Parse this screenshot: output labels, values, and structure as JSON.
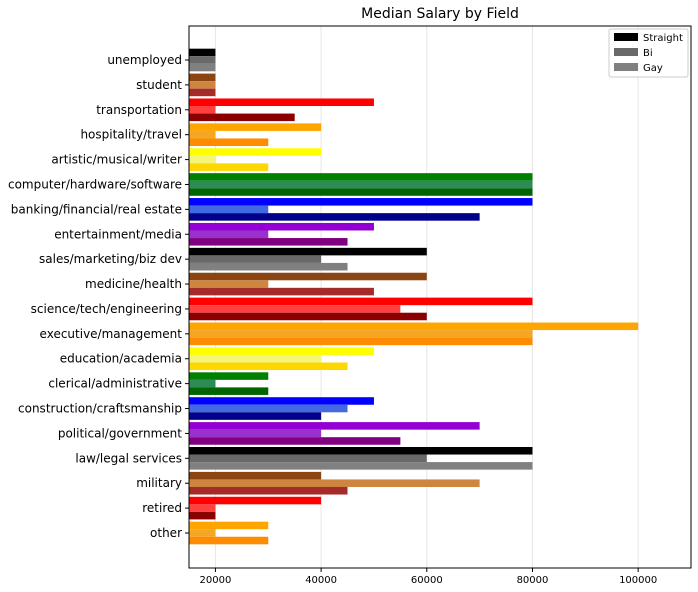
{
  "chart_data": {
    "type": "bar",
    "orientation": "horizontal",
    "title": "Median Salary by Field",
    "xlabel": "",
    "ylabel": "",
    "xlim": [
      15000,
      110000
    ],
    "xticks": [
      20000,
      40000,
      60000,
      80000,
      100000
    ],
    "grid": "vertical",
    "legend_position": "top-right",
    "categories": [
      "unemployed",
      "student",
      "transportation",
      "hospitality/travel",
      "artistic/musical/writer",
      "computer/hardware/software",
      "banking/financial/real estate",
      "entertainment/media",
      "sales/marketing/biz dev",
      "medicine/health",
      "science/tech/engineering",
      "executive/management",
      "education/academia",
      "clerical/administrative",
      "construction/craftsmanship",
      "political/government",
      "law/legal services",
      "military",
      "retired",
      "other"
    ],
    "series": [
      {
        "name": "Straight",
        "legend_color": "#000000",
        "values": [
          20000,
          20000,
          50000,
          40000,
          40000,
          80000,
          80000,
          50000,
          60000,
          60000,
          80000,
          100000,
          50000,
          30000,
          50000,
          70000,
          80000,
          40000,
          40000,
          30000
        ]
      },
      {
        "name": "Bi",
        "legend_color": "#696969",
        "values": [
          20000,
          20000,
          20000,
          20000,
          20000,
          80000,
          30000,
          30000,
          40000,
          30000,
          55000,
          80000,
          40000,
          20000,
          45000,
          40000,
          60000,
          70000,
          20000,
          20000
        ]
      },
      {
        "name": "Gay",
        "legend_color": "#808080",
        "values": [
          20000,
          20000,
          35000,
          30000,
          30000,
          80000,
          70000,
          45000,
          45000,
          50000,
          60000,
          80000,
          45000,
          30000,
          40000,
          55000,
          80000,
          45000,
          20000,
          30000
        ]
      }
    ],
    "bar_colors": [
      [
        "#000000",
        "#696969",
        "#808080"
      ],
      [
        "#8b4513",
        "#cd853f",
        "#a52a2a"
      ],
      [
        "#ff0000",
        "#ff4040",
        "#8b0000"
      ],
      [
        "#ffa500",
        "#f5a623",
        "#ff8c00"
      ],
      [
        "#ffff00",
        "#f5f57a",
        "#ffd700"
      ],
      [
        "#008000",
        "#2e8b57",
        "#006400"
      ],
      [
        "#0000ff",
        "#4169e1",
        "#00008b"
      ],
      [
        "#9400d3",
        "#9932cc",
        "#800080"
      ],
      [
        "#000000",
        "#696969",
        "#808080"
      ],
      [
        "#8b4513",
        "#cd853f",
        "#a52a2a"
      ],
      [
        "#ff0000",
        "#ff4040",
        "#8b0000"
      ],
      [
        "#ffa500",
        "#f5a623",
        "#ff8c00"
      ],
      [
        "#ffff00",
        "#f5f57a",
        "#ffd700"
      ],
      [
        "#008000",
        "#2e8b57",
        "#006400"
      ],
      [
        "#0000ff",
        "#4169e1",
        "#00008b"
      ],
      [
        "#9400d3",
        "#9932cc",
        "#800080"
      ],
      [
        "#000000",
        "#696969",
        "#808080"
      ],
      [
        "#8b4513",
        "#cd853f",
        "#a52a2a"
      ],
      [
        "#ff0000",
        "#ff4040",
        "#8b0000"
      ],
      [
        "#ffa500",
        "#f5a623",
        "#ff8c00"
      ]
    ]
  }
}
